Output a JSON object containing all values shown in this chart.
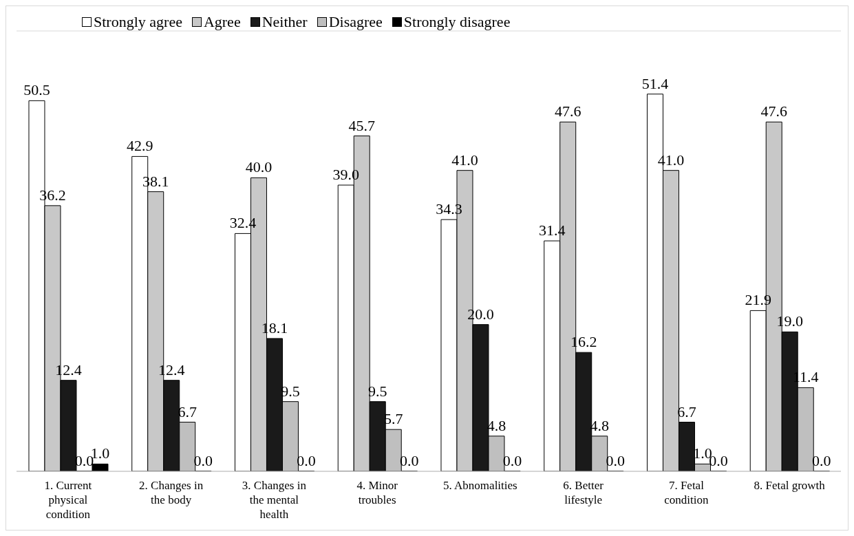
{
  "chart_data": {
    "type": "bar",
    "categories": [
      "1. Current physical condition",
      "2. Changes in the body",
      "3. Changes in the mental health",
      "4. Minor troubles",
      "5. Abnomalities",
      "6. Better lifestyle",
      "7. Fetal condition",
      "8. Fetal growth"
    ],
    "series": [
      {
        "name": "Strongly agree",
        "color": "#ffffff",
        "values": [
          50.5,
          42.9,
          32.4,
          39.0,
          34.3,
          31.4,
          51.4,
          21.9
        ],
        "value_labels": [
          "50.5",
          "42.9",
          "32.4",
          "39.0",
          "34.3",
          "31.4",
          "51.4",
          "21.9"
        ]
      },
      {
        "name": "Agree",
        "color": "#c8c8c8",
        "values": [
          36.2,
          38.1,
          40.0,
          45.7,
          41.0,
          47.6,
          41.0,
          47.6
        ],
        "value_labels": [
          "36.2",
          "38.1",
          "40.0",
          "45.7",
          "41.0",
          "47.6",
          "41.0",
          "47.6"
        ]
      },
      {
        "name": "Neither",
        "color": "#1a1a1a",
        "values": [
          12.4,
          12.4,
          18.1,
          9.5,
          20.0,
          16.2,
          6.7,
          19.0
        ],
        "value_labels": [
          "12.4",
          "12.4",
          "18.1",
          "9.5",
          "20.0",
          "16.2",
          "6.7",
          "19.0"
        ]
      },
      {
        "name": "Disagree",
        "color": "#bfbfbf",
        "values": [
          0.0,
          6.7,
          9.5,
          5.7,
          4.8,
          4.8,
          1.0,
          11.4
        ],
        "value_labels": [
          "0.0",
          "6.7",
          "9.5",
          "5.7",
          "4.8",
          "4.8",
          "1.0",
          "11.4"
        ]
      },
      {
        "name": "Strongly disagree",
        "color": "#000000",
        "values": [
          1.0,
          0.0,
          0.0,
          0.0,
          0.0,
          0.0,
          0.0,
          0.0
        ],
        "value_labels": [
          "1.0",
          "0.0",
          "0.0",
          "0.0",
          "0.0",
          "0.0",
          "0.0",
          "0.0"
        ]
      }
    ],
    "ylim": [
      0,
      60
    ],
    "tick_labels": "x",
    "grid": "y",
    "legend": "top"
  }
}
